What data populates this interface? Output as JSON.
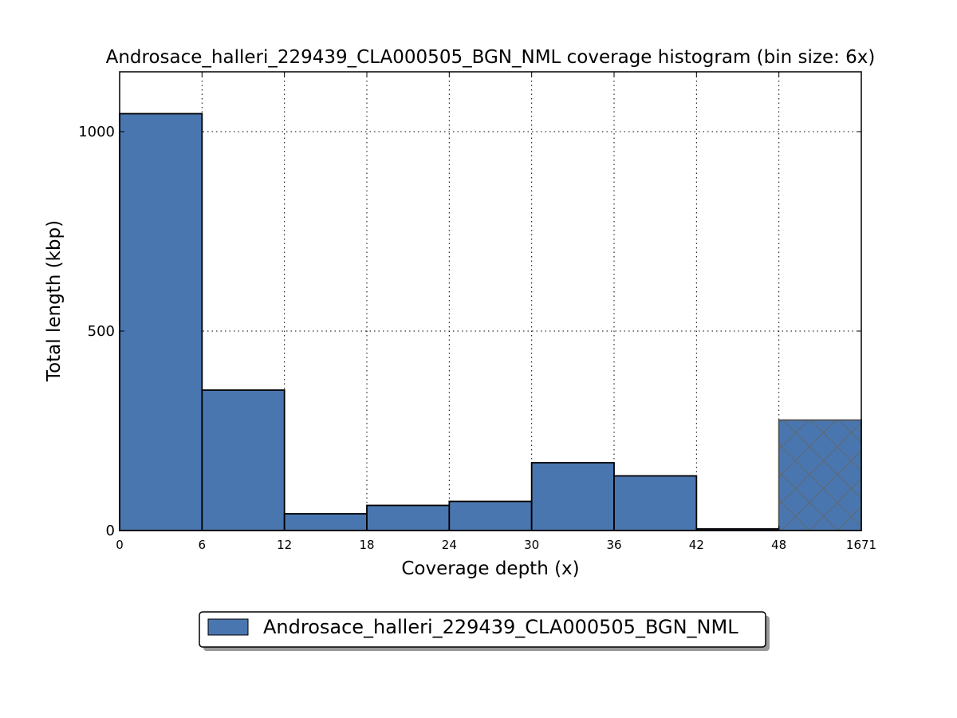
{
  "chart_data": {
    "type": "bar",
    "title": "Androsace_halleri_229439_CLA000505_BGN_NML coverage histogram (bin size: 6x)",
    "xlabel": "Coverage depth (x)",
    "ylabel": "Total length (kbp)",
    "x_tick_labels": [
      "0",
      "6",
      "12",
      "18",
      "24",
      "30",
      "36",
      "42",
      "48",
      "1671"
    ],
    "y_tick_labels": [
      "0",
      "500",
      "1000"
    ],
    "y_ticks": [
      0,
      500,
      1000
    ],
    "ylim": [
      0,
      1150
    ],
    "grid": true,
    "bins": [
      {
        "from": 0,
        "to": 6,
        "value": 1045
      },
      {
        "from": 6,
        "to": 12,
        "value": 352
      },
      {
        "from": 12,
        "to": 18,
        "value": 42
      },
      {
        "from": 18,
        "to": 24,
        "value": 63
      },
      {
        "from": 24,
        "to": 30,
        "value": 73
      },
      {
        "from": 30,
        "to": 36,
        "value": 170
      },
      {
        "from": 36,
        "to": 42,
        "value": 137
      },
      {
        "from": 42,
        "to": 48,
        "value": 4
      },
      {
        "from": 48,
        "to": 1671,
        "value": 277,
        "hatched": true
      }
    ],
    "series": [
      {
        "name": "Androsace_halleri_229439_CLA000505_BGN_NML",
        "color": "#4a76b0"
      }
    ],
    "legend_position": "bottom-center"
  }
}
